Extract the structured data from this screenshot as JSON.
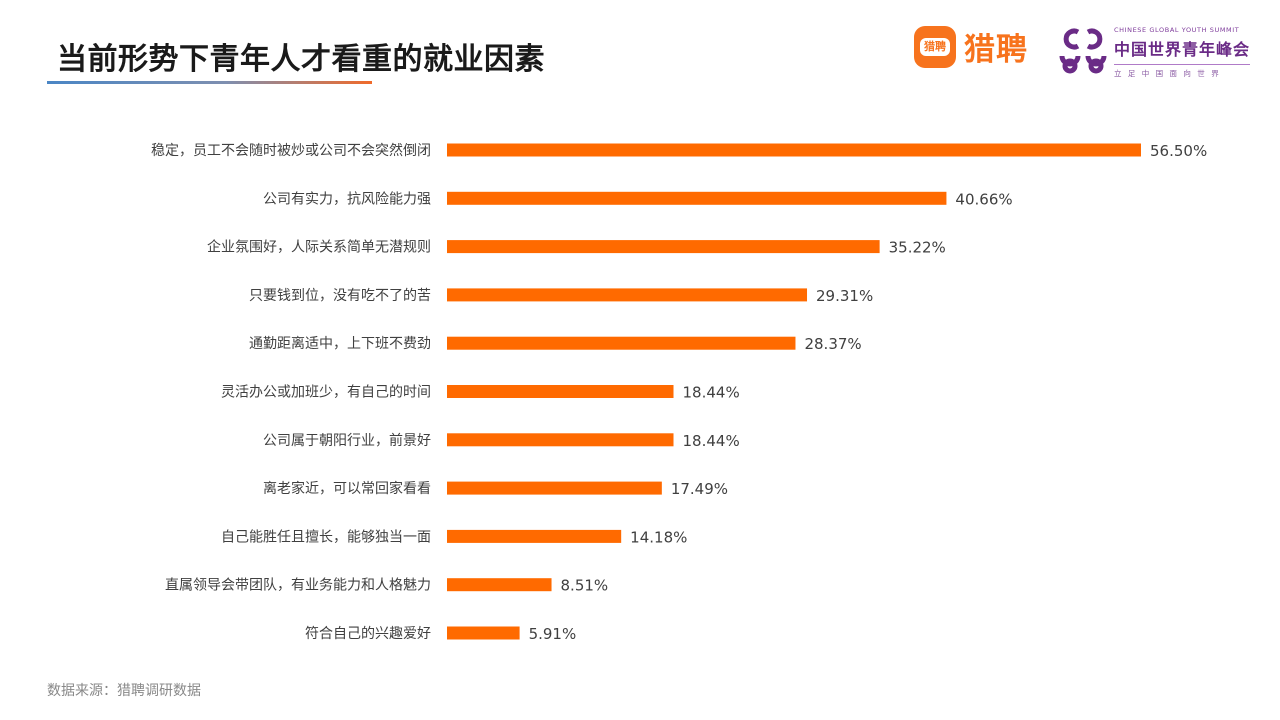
{
  "title": "当前形势下青年人才看重的就业因素",
  "logos": {
    "liepin_icon_text": "猎聘",
    "liepin_text": "猎聘",
    "summit_en": "CHINESE GLOBAL YOUTH SUMMIT",
    "summit_cn": "中国世界青年峰会",
    "summit_tagline": "立 足 中 国    面 向 世 界"
  },
  "colors": {
    "bar": "#ff6a00",
    "title_accent_blue": "#4a86c5",
    "title_accent_orange": "#f06a2a",
    "liepin_orange": "#f7731d",
    "summit_purple": "#6a2b86"
  },
  "source": "数据来源：猎聘调研数据",
  "chart_data": {
    "type": "bar",
    "orientation": "horizontal",
    "categories": [
      "稳定，员工不会随时被炒或公司不会突然倒闭",
      "公司有实力，抗风险能力强",
      "企业氛围好，人际关系简单无潜规则",
      "只要钱到位，没有吃不了的苦",
      "通勤距离适中，上下班不费劲",
      "灵活办公或加班少，有自己的时间",
      "公司属于朝阳行业，前景好",
      "离老家近，可以常回家看看",
      "自己能胜任且擅长，能够独当一面",
      "直属领导会带团队，有业务能力和人格魅力",
      "符合自己的兴趣爱好"
    ],
    "values": [
      56.5,
      40.66,
      35.22,
      29.31,
      28.37,
      18.44,
      18.44,
      17.49,
      14.18,
      8.51,
      5.91
    ],
    "value_labels": [
      "56.50%",
      "40.66%",
      "35.22%",
      "29.31%",
      "28.37%",
      "18.44%",
      "18.44%",
      "17.49%",
      "14.18%",
      "8.51%",
      "5.91%"
    ],
    "unit": "%",
    "grid": false,
    "legend": "none"
  }
}
